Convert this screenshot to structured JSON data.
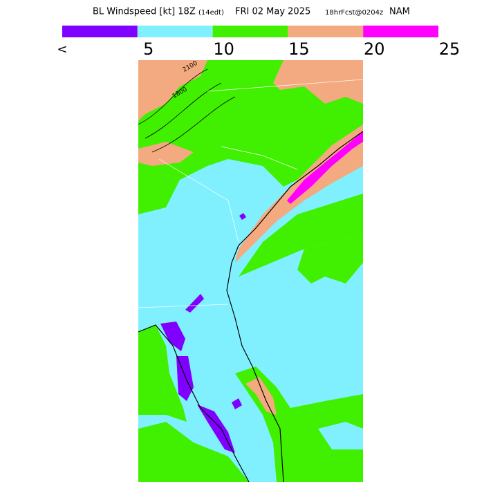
{
  "title": {
    "main": "BL Windspeed [kt] 18Z",
    "edt": "(14edt)",
    "date": "FRI 02 May 2025",
    "fcst": "18hrFcst@0204z",
    "model": "NAM"
  },
  "legend": {
    "colors": [
      "#8000ff",
      "#80f0ff",
      "#40f000",
      "#f4aa80",
      "#ff00ff"
    ],
    "labels": [
      "<",
      "5",
      "10",
      "15",
      "20",
      "25"
    ]
  },
  "contour_labels": [
    "2100",
    "1800"
  ]
}
